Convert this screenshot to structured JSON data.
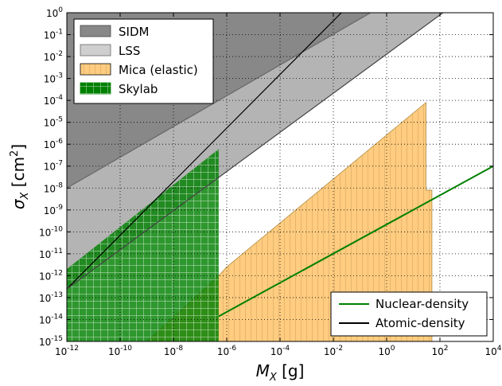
{
  "chart_data": {
    "type": "area",
    "title": "",
    "xlabel": {
      "symbol": "M",
      "sub": "X",
      "unit": "[g]"
    },
    "ylabel": {
      "symbol": "σ",
      "sub": "X",
      "unit": "[cm",
      "sup": "2",
      "close": "]"
    },
    "x_scale": "log",
    "y_scale": "log",
    "xlim": [
      1e-12,
      10000.0
    ],
    "ylim": [
      1e-15,
      1
    ],
    "grid": true,
    "x_ticks": [
      {
        "exp": "-12"
      },
      {
        "exp": "-10"
      },
      {
        "exp": "-8"
      },
      {
        "exp": "-6"
      },
      {
        "exp": "-4"
      },
      {
        "exp": "-2"
      },
      {
        "exp": "0"
      },
      {
        "exp": "2"
      },
      {
        "exp": "4"
      }
    ],
    "y_ticks": [
      {
        "exp": "-15"
      },
      {
        "exp": "-14"
      },
      {
        "exp": "-13"
      },
      {
        "exp": "-12"
      },
      {
        "exp": "-11"
      },
      {
        "exp": "-10"
      },
      {
        "exp": "-9"
      },
      {
        "exp": "-8"
      },
      {
        "exp": "-7"
      },
      {
        "exp": "-6"
      },
      {
        "exp": "-5"
      },
      {
        "exp": "-4"
      },
      {
        "exp": "-3"
      },
      {
        "exp": "-2"
      },
      {
        "exp": "-1"
      },
      {
        "exp": "0"
      }
    ],
    "regions": [
      {
        "name": "SIDM",
        "color": "#888888",
        "polygon": [
          [
            1e-12,
            1e-08
          ],
          [
            0.25,
            1
          ],
          [
            1e-12,
            1
          ]
        ]
      },
      {
        "name": "LSS",
        "color": "#b4b4b4",
        "polygon": [
          [
            1e-12,
            2.5e-13
          ],
          [
            130.0,
            1
          ],
          [
            0.25,
            1
          ],
          [
            1e-12,
            1e-08
          ]
        ]
      },
      {
        "name": "Mica (elastic)",
        "color": "#ffcc80",
        "polygon": [
          [
            1e-09,
            1e-15
          ],
          [
            5e-07,
            1e-12
          ],
          [
            1e-06,
            2.5e-12
          ],
          [
            30,
            8e-05
          ],
          [
            30,
            8e-09
          ],
          [
            50,
            8e-09
          ],
          [
            50,
            1e-15
          ]
        ]
      },
      {
        "name": "Skylab",
        "color": "#008000",
        "polygon": [
          [
            1e-12,
            1e-15
          ],
          [
            5e-07,
            1e-15
          ],
          [
            5e-07,
            6e-07
          ],
          [
            1e-12,
            2e-12
          ]
        ]
      }
    ],
    "lines": [
      {
        "name": "Nuclear-density",
        "color": "#008000",
        "points": [
          [
            5e-07,
            1.4e-14
          ],
          [
            10000.0,
            1e-07
          ]
        ]
      },
      {
        "name": "SIDM boundary",
        "color": "#666666",
        "points": [
          [
            1e-12,
            1e-08
          ],
          [
            0.25,
            1
          ]
        ]
      },
      {
        "name": "Atomic-density",
        "color": "#000000",
        "points": [
          [
            1e-12,
            2.5e-13
          ],
          [
            0.02,
            1
          ]
        ]
      },
      {
        "name": "LSS lower boundary",
        "color": "#444444",
        "points": [
          [
            1e-12,
            2.5e-13
          ],
          [
            130.0,
            1
          ]
        ]
      }
    ],
    "legend_upper": {
      "placement": "top-left",
      "entries": [
        "SIDM",
        "LSS",
        "Mica (elastic)",
        "Skylab"
      ]
    },
    "legend_lower": {
      "placement": "bottom-right",
      "entries": [
        {
          "label": "Nuclear-density",
          "color": "#008000"
        },
        {
          "label": "Atomic-density",
          "color": "#000000"
        }
      ]
    }
  }
}
